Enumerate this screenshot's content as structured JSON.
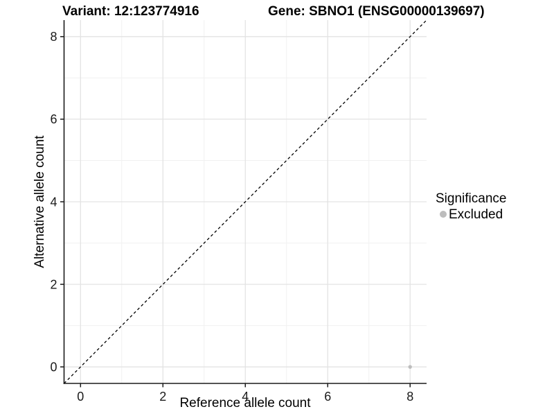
{
  "chart_data": {
    "type": "scatter",
    "title_left": "Variant: 12:123774916",
    "title_right": "Gene: SBNO1 (ENSG00000139697)",
    "xlabel": "Reference allele count",
    "ylabel": "Alternative allele count",
    "xlim": [
      -0.4,
      8.4
    ],
    "ylim": [
      -0.4,
      8.4
    ],
    "x_ticks": [
      0,
      2,
      4,
      6,
      8
    ],
    "y_ticks": [
      0,
      2,
      4,
      6,
      8
    ],
    "x_minor_ticks": [
      1,
      3,
      5,
      7
    ],
    "y_minor_ticks": [
      1,
      3,
      5,
      7
    ],
    "grid": true,
    "points": [
      {
        "x": 8,
        "y": 0,
        "significance": "Excluded"
      }
    ],
    "reference_line": {
      "slope": 1,
      "intercept": 0,
      "style": "dashed"
    },
    "legend": {
      "title": "Significance",
      "position": "right",
      "items": [
        {
          "label": "Excluded",
          "color": "#bdbdbd",
          "marker": "circle"
        }
      ]
    },
    "colors": {
      "point": "#bdbdbd",
      "grid_major": "#e3e3e3",
      "grid_minor": "#f1f1f1",
      "axis": "#1a1a1a",
      "tick_label": "#1a1a1a",
      "reference_line": "#000000"
    }
  }
}
